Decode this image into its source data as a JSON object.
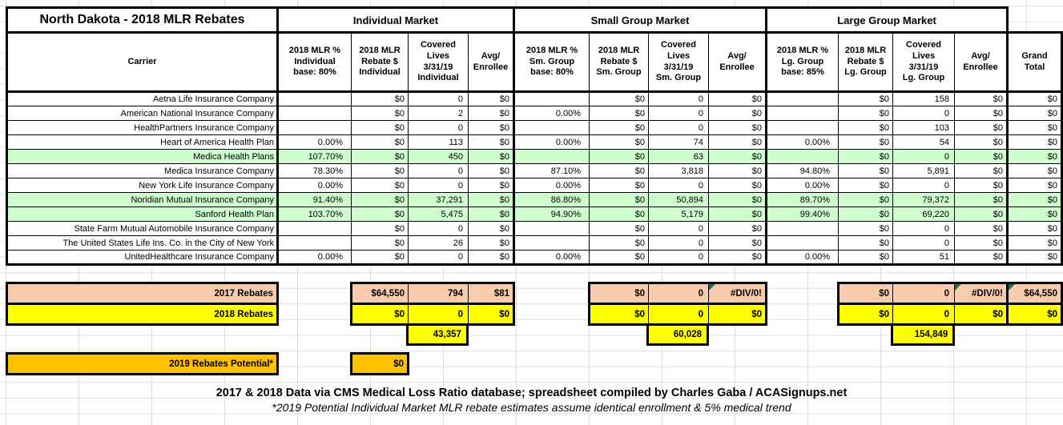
{
  "title": "North Dakota - 2018 MLR Rebates",
  "sections": {
    "individual": "Individual Market",
    "small_group": "Small Group Market",
    "large_group": "Large Group Market"
  },
  "columns": {
    "carrier": "Carrier",
    "ind_mlr": "2018 MLR %\nIndividual\nbase: 80%",
    "ind_rebate": "2018 MLR\nRebate $\nIndividual",
    "ind_lives": "Covered\nLives\n3/31/19\nIndividual",
    "avg_enrollee": "Avg/\nEnrollee",
    "sm_mlr": "2018 MLR %\nSm. Group\nbase: 80%",
    "sm_rebate": "2018 MLR\nRebate $\nSm. Group",
    "sm_lives": "Covered\nLives\n3/31/19\nSm. Group",
    "lg_mlr": "2018 MLR %\nLg. Group\nbase: 85%",
    "lg_rebate": "2018 MLR\nRebate $\nLg. Group",
    "lg_lives": "Covered\nLives\n3/31/19\nLg. Group",
    "grand_total": "Grand\nTotal"
  },
  "rows": [
    {
      "carrier": "Aetna Life Insurance Company",
      "i_mlr": "",
      "i_reb": "$0",
      "i_lives": "0",
      "i_avg": "$0",
      "s_mlr": "",
      "s_reb": "$0",
      "s_lives": "0",
      "s_avg": "$0",
      "l_mlr": "",
      "l_reb": "$0",
      "l_lives": "158",
      "l_avg": "$0",
      "total": "$0",
      "highlight": false
    },
    {
      "carrier": "American National Insurance Company",
      "i_mlr": "",
      "i_reb": "$0",
      "i_lives": "2",
      "i_avg": "$0",
      "s_mlr": "0.00%",
      "s_reb": "$0",
      "s_lives": "0",
      "s_avg": "$0",
      "l_mlr": "",
      "l_reb": "$0",
      "l_lives": "0",
      "l_avg": "$0",
      "total": "$0",
      "highlight": false
    },
    {
      "carrier": "HealthPartners Insurance Company",
      "i_mlr": "",
      "i_reb": "$0",
      "i_lives": "0",
      "i_avg": "$0",
      "s_mlr": "",
      "s_reb": "$0",
      "s_lives": "0",
      "s_avg": "$0",
      "l_mlr": "",
      "l_reb": "$0",
      "l_lives": "103",
      "l_avg": "$0",
      "total": "$0",
      "highlight": false
    },
    {
      "carrier": "Heart of America Health Plan",
      "i_mlr": "0.00%",
      "i_reb": "$0",
      "i_lives": "113",
      "i_avg": "$0",
      "s_mlr": "0.00%",
      "s_reb": "$0",
      "s_lives": "74",
      "s_avg": "$0",
      "l_mlr": "0.00%",
      "l_reb": "$0",
      "l_lives": "54",
      "l_avg": "$0",
      "total": "$0",
      "highlight": false
    },
    {
      "carrier": "Medica Health Plans",
      "i_mlr": "107.70%",
      "i_reb": "$0",
      "i_lives": "450",
      "i_avg": "$0",
      "s_mlr": "",
      "s_reb": "$0",
      "s_lives": "63",
      "s_avg": "$0",
      "l_mlr": "",
      "l_reb": "$0",
      "l_lives": "0",
      "l_avg": "$0",
      "total": "$0",
      "highlight": true
    },
    {
      "carrier": "Medica Insurance Company",
      "i_mlr": "78.30%",
      "i_reb": "$0",
      "i_lives": "0",
      "i_avg": "$0",
      "s_mlr": "87.10%",
      "s_reb": "$0",
      "s_lives": "3,818",
      "s_avg": "$0",
      "l_mlr": "94.80%",
      "l_reb": "$0",
      "l_lives": "5,891",
      "l_avg": "$0",
      "total": "$0",
      "highlight": false
    },
    {
      "carrier": "New York Life Insurance Company",
      "i_mlr": "0.00%",
      "i_reb": "$0",
      "i_lives": "0",
      "i_avg": "$0",
      "s_mlr": "0.00%",
      "s_reb": "$0",
      "s_lives": "0",
      "s_avg": "$0",
      "l_mlr": "0.00%",
      "l_reb": "$0",
      "l_lives": "0",
      "l_avg": "$0",
      "total": "$0",
      "highlight": false
    },
    {
      "carrier": "Noridian Mutual Insurance Company",
      "i_mlr": "91.40%",
      "i_reb": "$0",
      "i_lives": "37,291",
      "i_avg": "$0",
      "s_mlr": "86.80%",
      "s_reb": "$0",
      "s_lives": "50,894",
      "s_avg": "$0",
      "l_mlr": "89.70%",
      "l_reb": "$0",
      "l_lives": "79,372",
      "l_avg": "$0",
      "total": "$0",
      "highlight": true
    },
    {
      "carrier": "Sanford Health Plan",
      "i_mlr": "103.70%",
      "i_reb": "$0",
      "i_lives": "5,475",
      "i_avg": "$0",
      "s_mlr": "94.90%",
      "s_reb": "$0",
      "s_lives": "5,179",
      "s_avg": "$0",
      "l_mlr": "99.40%",
      "l_reb": "$0",
      "l_lives": "69,220",
      "l_avg": "$0",
      "total": "$0",
      "highlight": true
    },
    {
      "carrier": "State Farm Mutual Automobile Insurance Company",
      "i_mlr": "",
      "i_reb": "$0",
      "i_lives": "0",
      "i_avg": "$0",
      "s_mlr": "",
      "s_reb": "$0",
      "s_lives": "0",
      "s_avg": "$0",
      "l_mlr": "",
      "l_reb": "$0",
      "l_lives": "0",
      "l_avg": "$0",
      "total": "$0",
      "highlight": false
    },
    {
      "carrier": "The United States Life Ins. Co. in the City of New York",
      "i_mlr": "",
      "i_reb": "$0",
      "i_lives": "26",
      "i_avg": "$0",
      "s_mlr": "",
      "s_reb": "$0",
      "s_lives": "0",
      "s_avg": "$0",
      "l_mlr": "",
      "l_reb": "$0",
      "l_lives": "0",
      "l_avg": "$0",
      "total": "$0",
      "highlight": false
    },
    {
      "carrier": "UnitedHealthcare Insurance Company",
      "i_mlr": "0.00%",
      "i_reb": "$0",
      "i_lives": "0",
      "i_avg": "$0",
      "s_mlr": "0.00%",
      "s_reb": "$0",
      "s_lives": "0",
      "s_avg": "$0",
      "l_mlr": "0.00%",
      "l_reb": "$0",
      "l_lives": "51",
      "l_avg": "$0",
      "total": "$0",
      "highlight": false
    }
  ],
  "summary_2017": {
    "label": "2017 Rebates",
    "i_reb": "$64,550",
    "i_lives": "794",
    "i_avg": "$81",
    "s_reb": "$0",
    "s_lives": "0",
    "s_avg": "#DIV/0!",
    "l_reb": "$0",
    "l_lives": "0",
    "l_avg": "#DIV/0!",
    "total": "$64,550"
  },
  "summary_2018": {
    "label": "2018 Rebates",
    "i_reb": "$0",
    "i_lives": "0",
    "i_avg": "$0",
    "s_reb": "$0",
    "s_lives": "0",
    "s_avg": "$0",
    "l_reb": "$0",
    "l_lives": "0",
    "l_avg": "$0",
    "total": "$0"
  },
  "lives_totals": {
    "individual": "43,357",
    "small_group": "60,028",
    "large_group": "154,849"
  },
  "potential_2019": {
    "label": "2019 Rebates Potential*",
    "value": "$0"
  },
  "footer": {
    "line1": "2017 & 2018 Data via CMS Medical Loss Ratio database; spreadsheet compiled by Charles Gaba / ACASignups.net",
    "line2": "*2019 Potential Individual Market MLR rebate estimates assume identical enrollment & 5% medical trend"
  },
  "colors": {
    "highlight-green": "#CCFFCC",
    "peach": "#F8CBAD",
    "yellow": "#FFFF00",
    "gold": "#FFC000",
    "grid": "#dcdee1",
    "border": "#000000"
  }
}
